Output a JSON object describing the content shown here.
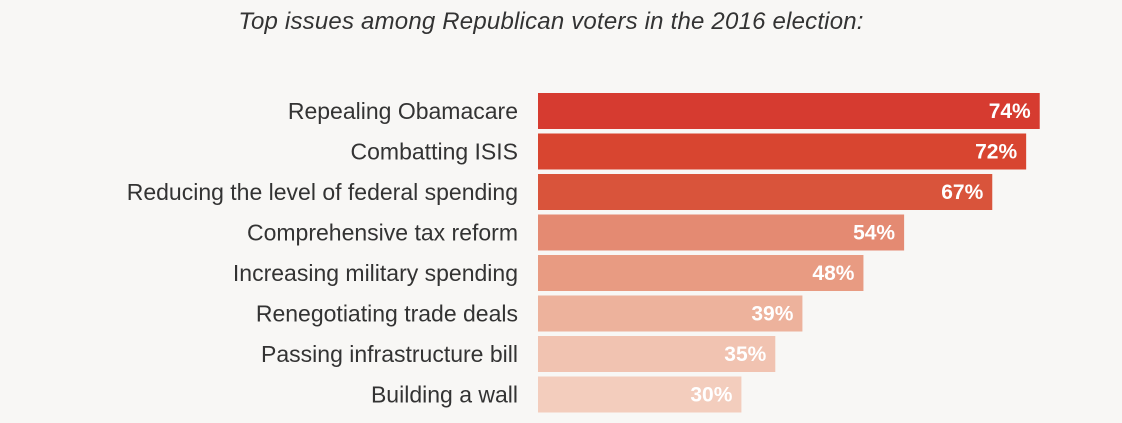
{
  "chart_data": {
    "type": "bar",
    "orientation": "horizontal",
    "title": "Top issues among Republican voters in the 2016 election:",
    "categories": [
      "Repealing Obamacare",
      "Combatting ISIS",
      "Reducing the level of federal spending",
      "Comprehensive tax reform",
      "Increasing military spending",
      "Renegotiating trade deals",
      "Passing infrastructure bill",
      "Building a wall"
    ],
    "values": [
      74,
      72,
      67,
      54,
      48,
      39,
      35,
      30
    ],
    "value_labels": [
      "74%",
      "72%",
      "67%",
      "54%",
      "48%",
      "39%",
      "35%",
      "30%"
    ],
    "unit": "%",
    "bar_colors": [
      "#d63b30",
      "#d84530",
      "#d9543b",
      "#e48a72",
      "#e89b82",
      "#edb29c",
      "#f1c3b1",
      "#f3cdbd"
    ],
    "grid": false,
    "legend": "none"
  }
}
